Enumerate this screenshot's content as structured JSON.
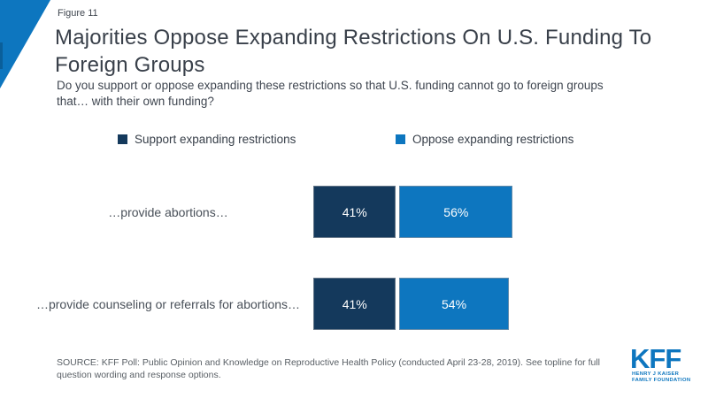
{
  "figure_label": "Figure 11",
  "title": "Majorities Oppose Expanding Restrictions On U.S. Funding To\nForeign Groups",
  "subtitle": "Do you support or oppose expanding these restrictions so that U.S. funding cannot go to foreign groups\nthat… with their own funding?",
  "colors": {
    "support_navy": "#14395c",
    "oppose_blue": "#0d76bf",
    "accent_triangle": "#0d76bf",
    "accent_triangle_dark": "#0a5f9a",
    "kff_blue": "#0d76bf"
  },
  "chart_data": {
    "type": "bar",
    "orientation": "horizontal",
    "title": "Majorities Oppose Expanding Restrictions On U.S. Funding To Foreign Groups",
    "question": "Do you support or oppose expanding these restrictions so that U.S. funding cannot go to foreign groups that… with their own funding?",
    "categories": [
      "…provide abortions…",
      "…provide counseling or referrals for abortions…"
    ],
    "series": [
      {
        "name": "Support expanding restrictions",
        "color": "#14395c",
        "values": [
          41,
          41
        ]
      },
      {
        "name": "Oppose expanding restrictions",
        "color": "#0d76bf",
        "values": [
          56,
          54
        ]
      }
    ],
    "value_labels": [
      [
        "41%",
        "56%"
      ],
      [
        "41%",
        "54%"
      ]
    ],
    "unit": "percent",
    "legend_position": "top",
    "grid": false
  },
  "source": "SOURCE: KFF Poll: Public Opinion and Knowledge on Reproductive Health Policy (conducted April 23-28, 2019). See topline for full\nquestion wording and response options.",
  "logo": {
    "text": "KFF",
    "line1": "HENRY J KAISER",
    "line2": "FAMILY FOUNDATION"
  }
}
